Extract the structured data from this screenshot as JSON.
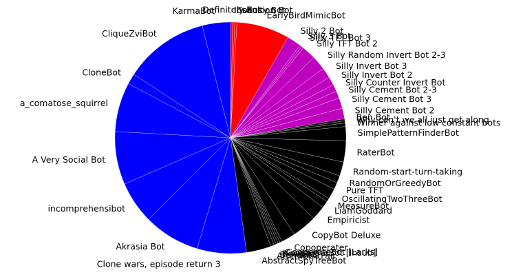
{
  "chart_data": {
    "type": "pie",
    "categories": [
      "Definitely Bot",
      "Insanity Bot",
      "Collusion Bot",
      "EarlyBirdMimicBot",
      "Silly 2 Bot",
      "Silly 3 Bot",
      "Silly TFT Bot 3",
      "Silly TFT Bot 2",
      "Silly Random Invert Bot 2-3",
      "Silly Invert Bot 3",
      "Silly Invert Bot 2",
      "Silly Counter Invert Bot",
      "Silly Cement Bot 2-3",
      "Silly Cement Bot 3",
      "Silly Cement Bot 2",
      "Ben Bot",
      "Why can't we all just get along",
      "Winner against low constant bots",
      "SimplePatternFinderBot",
      "RaterBot",
      "Random-start-turn-taking",
      "RandomOrGreedyBot",
      "Pure TFT",
      "OscillatingTwoThreeBot",
      "MeasureBot",
      "LiamGoddard",
      "Empiricist",
      "CopyBot Deluxe",
      "Copoperater",
      "CooperateBot [Larks]",
      "CooperateBot [Insub]",
      "BeauBot",
      "Bendbot",
      "AttemptAtFair",
      "AbstractSpyTreeBot",
      "Clone wars, episode return 3",
      "Akrasia Bot",
      "incomprehensibot",
      "A Very Social Bot",
      "a_comatose_squirrel",
      "CloneBot",
      "CliqueZviBot",
      "KarmaBot"
    ],
    "values": [
      0.3,
      0.3,
      0.3,
      7.5,
      2,
      0.3,
      0.3,
      2,
      2,
      1.5,
      1.2,
      1,
      1,
      1.5,
      1.5,
      0.3,
      0.3,
      0.5,
      2,
      3,
      2,
      1,
      1,
      1.5,
      0.5,
      1,
      2,
      3.5,
      2,
      0.3,
      0.3,
      0.3,
      0.3,
      0.5,
      3.5,
      7,
      8,
      6,
      7.5,
      7,
      1.5,
      12,
      4
    ],
    "colors": [
      "#ff0000",
      "#ff0000",
      "#ff0000",
      "#ff0000",
      "#bf00bf",
      "#bf00bf",
      "#bf00bf",
      "#bf00bf",
      "#bf00bf",
      "#bf00bf",
      "#bf00bf",
      "#bf00bf",
      "#bf00bf",
      "#bf00bf",
      "#bf00bf",
      "#000000",
      "#000000",
      "#000000",
      "#000000",
      "#000000",
      "#000000",
      "#000000",
      "#000000",
      "#000000",
      "#000000",
      "#000000",
      "#000000",
      "#000000",
      "#000000",
      "#000000",
      "#000000",
      "#000000",
      "#000000",
      "#000000",
      "#000000",
      "#0000ff",
      "#0000ff",
      "#0000ff",
      "#0000ff",
      "#0000ff",
      "#0000ff",
      "#0000ff",
      "#0000ff"
    ]
  }
}
